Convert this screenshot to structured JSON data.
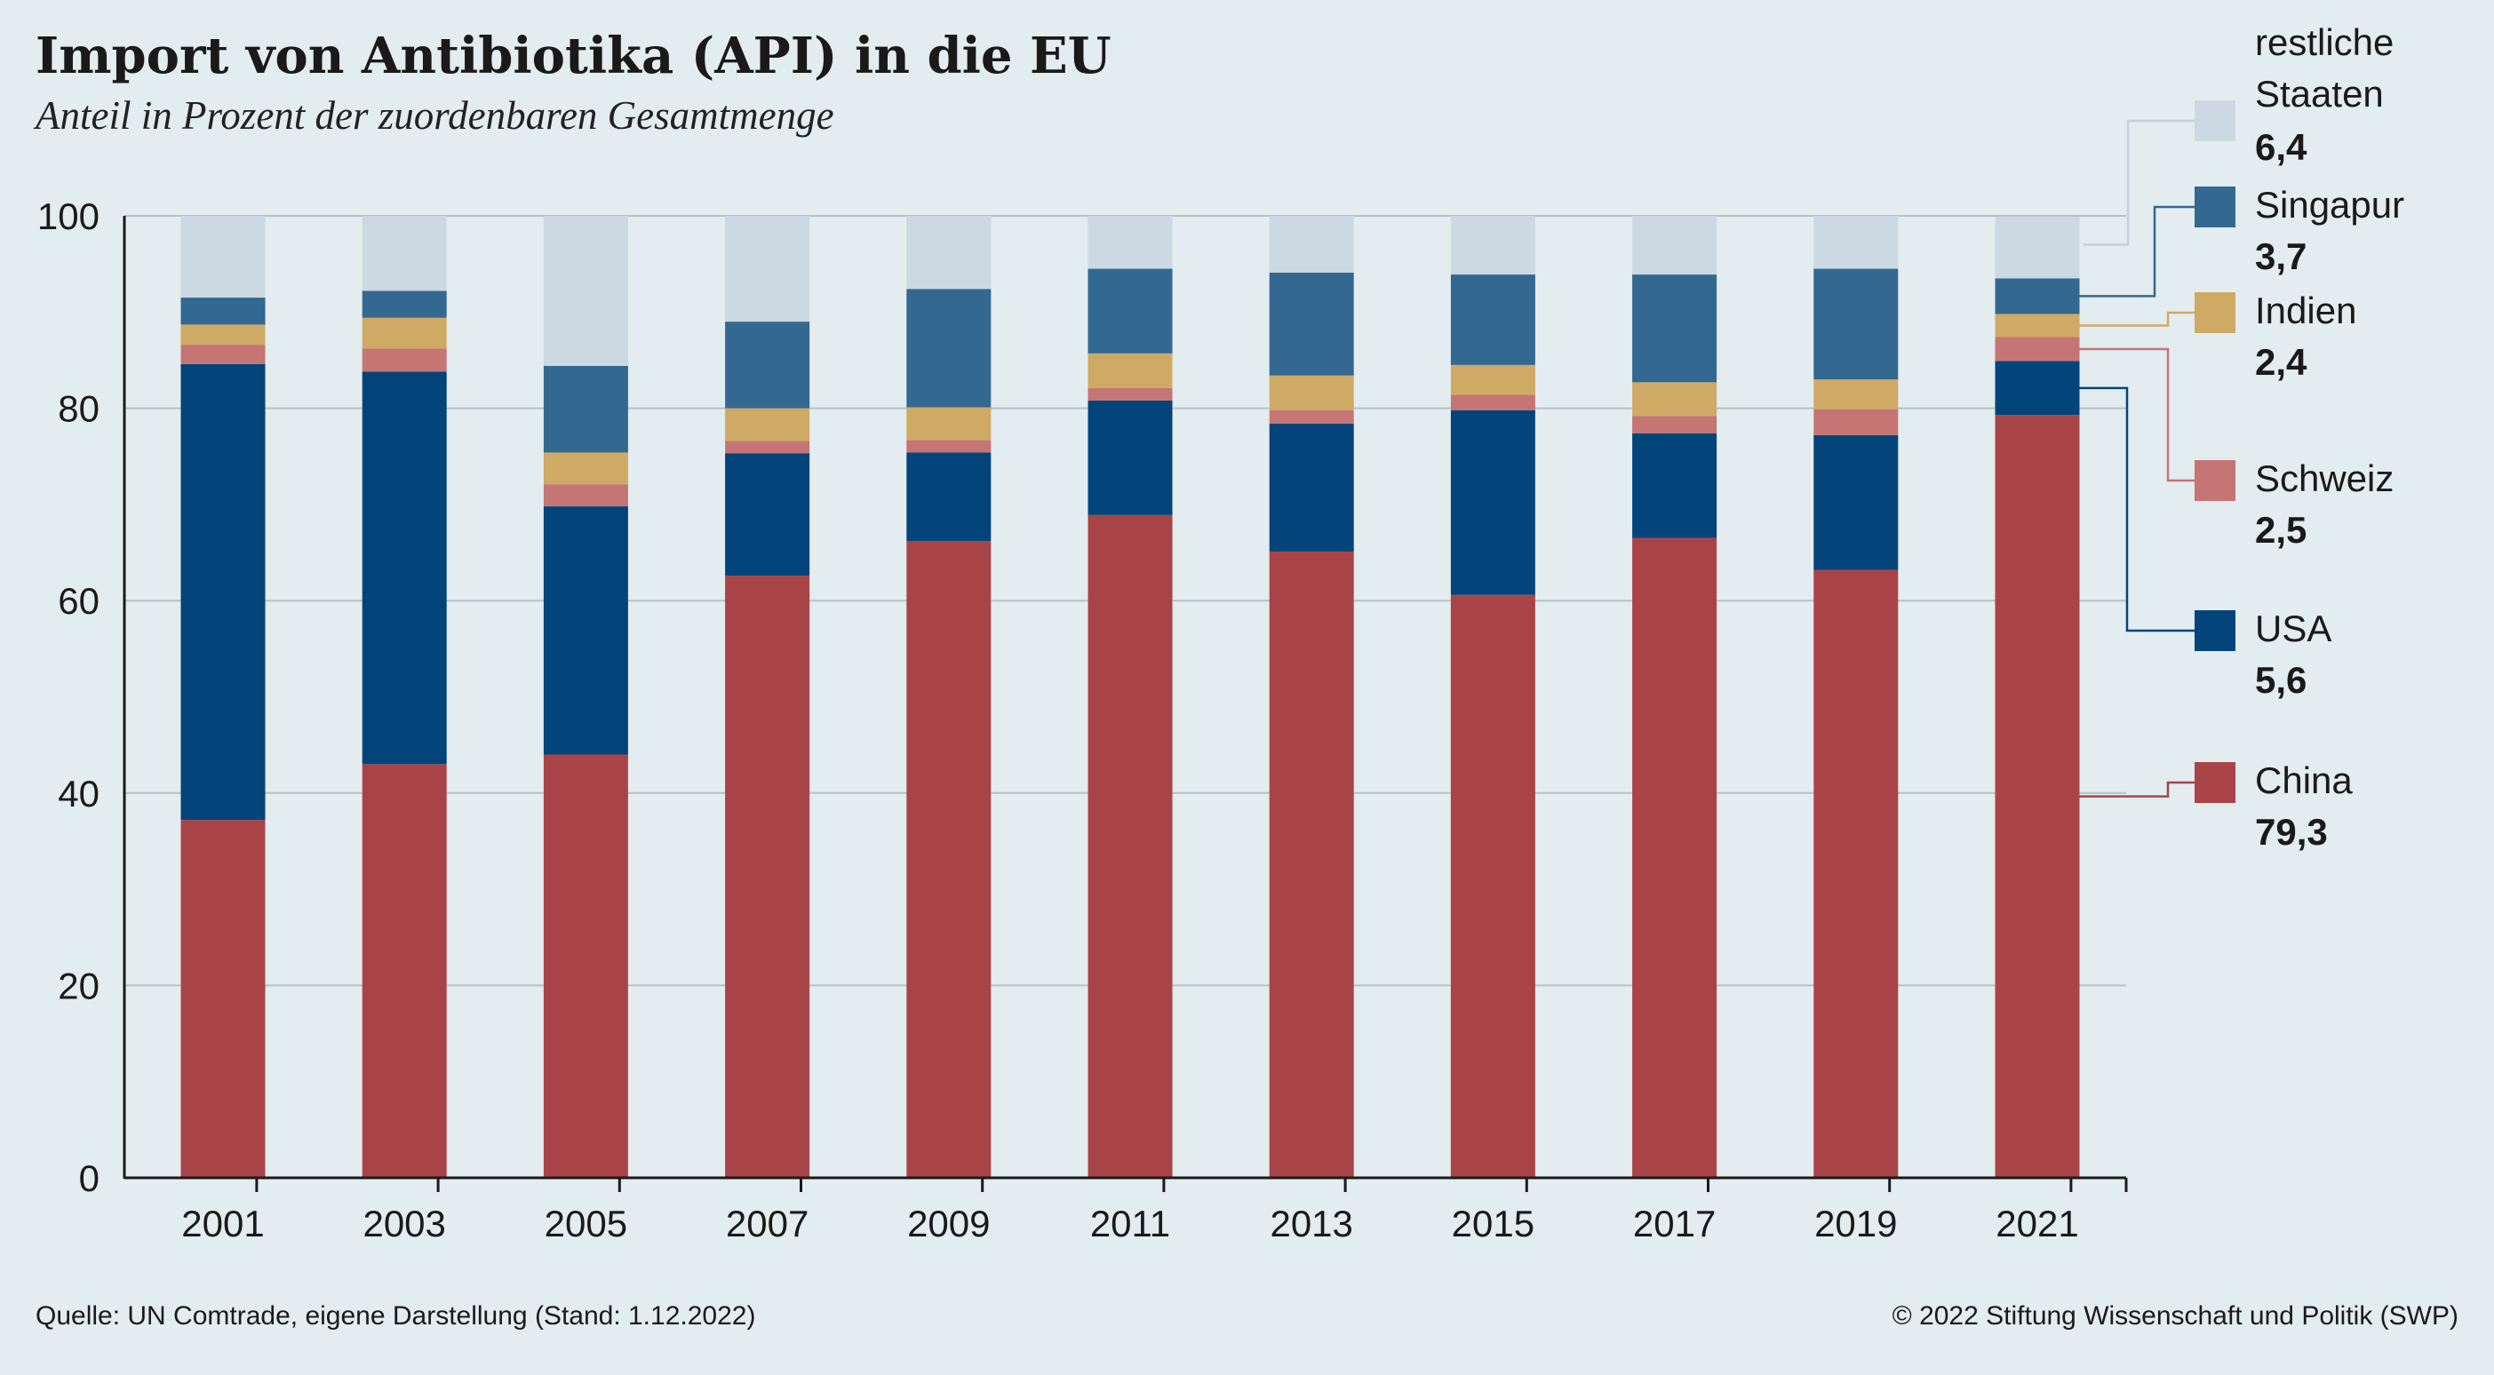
{
  "title": "Import von Antibiotika (API) in die EU",
  "subtitle": "Anteil in Prozent der zuordenbaren Gesamtmenge",
  "footer": {
    "source": "Quelle: UN Comtrade, eigene Darstellung (Stand: 1.12.2022)",
    "copyright": "© 2022 Stiftung Wissenschaft und Politik (SWP)"
  },
  "chart_data": {
    "type": "bar",
    "stacked": true,
    "title": "Import von Antibiotika (API) in die EU",
    "subtitle": "Anteil in Prozent der zuordenbaren Gesamtmenge",
    "ylim": [
      0,
      100
    ],
    "yticks": [
      "0",
      "20",
      "40",
      "60",
      "80",
      "100"
    ],
    "grid": true,
    "legend_position": "right",
    "categories": [
      "2001",
      "2003",
      "2005",
      "2007",
      "2009",
      "2011",
      "2013",
      "2015",
      "2017",
      "2019",
      "2021"
    ],
    "series": [
      {
        "name": "China",
        "color": "#a84448",
        "label_value": "79,3",
        "values": [
          37.2,
          43.0,
          44.0,
          62.6,
          66.2,
          68.9,
          65.1,
          60.6,
          66.5,
          63.2,
          79.3
        ]
      },
      {
        "name": "USA",
        "color": "#03457a",
        "label_value": "5,6",
        "values": [
          47.4,
          40.8,
          25.8,
          12.7,
          9.2,
          11.9,
          13.3,
          19.2,
          10.9,
          14.0,
          5.6
        ]
      },
      {
        "name": "Schweiz",
        "color": "#c57574",
        "label_value": "2,5",
        "values": [
          2.0,
          2.4,
          2.3,
          1.3,
          1.3,
          1.3,
          1.4,
          1.6,
          1.8,
          2.7,
          2.5
        ]
      },
      {
        "name": "Indien",
        "color": "#cfaa64",
        "label_value": "2,4",
        "values": [
          2.1,
          3.2,
          3.3,
          3.4,
          3.4,
          3.6,
          3.6,
          3.1,
          3.5,
          3.1,
          2.4
        ]
      },
      {
        "name": "Singapur",
        "color": "#336891",
        "label_value": "3,7",
        "values": [
          2.8,
          2.8,
          9.0,
          9.0,
          12.3,
          8.8,
          10.7,
          9.4,
          11.2,
          11.5,
          3.7
        ]
      },
      {
        "name": "restliche Staaten",
        "name_lines": [
          "restliche",
          "Staaten"
        ],
        "color": "#ccd8e2",
        "label_value": "6,4",
        "values": [
          8.5,
          7.8,
          15.6,
          11.0,
          7.6,
          5.5,
          5.9,
          6.1,
          6.1,
          5.5,
          6.4
        ]
      }
    ]
  }
}
